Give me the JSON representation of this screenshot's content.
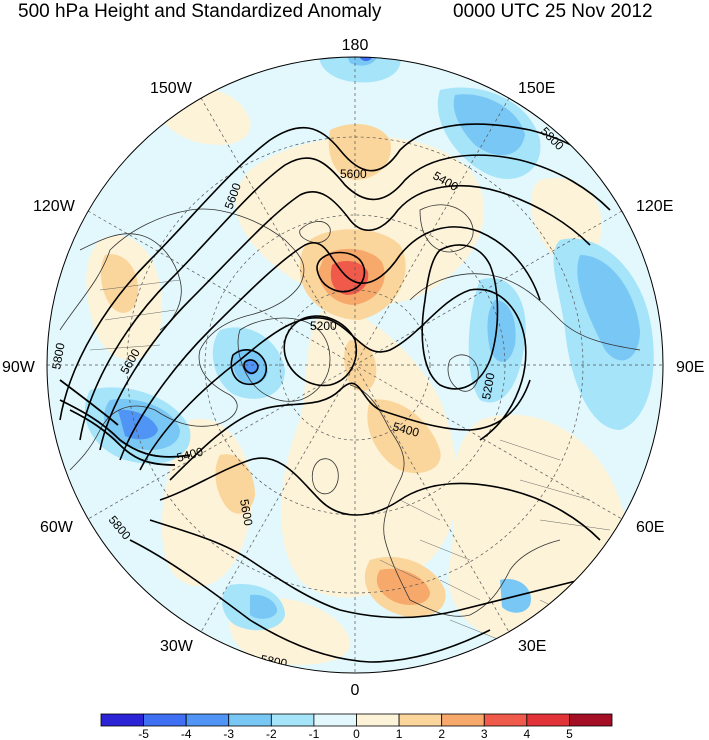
{
  "title_left": "500 hPa Height and Standardized Anomaly",
  "title_right": "0000 UTC 25 Nov 2012",
  "longitude_labels": {
    "top": "180",
    "bottom": "0",
    "left": "90W",
    "right": "90E",
    "upper_left_inner": "150W",
    "upper_right_inner": "150E",
    "upper_left_outer": "120W",
    "upper_right_outer": "120E",
    "lower_left_outer": "60W",
    "lower_right_outer": "60E",
    "lower_left_inner": "30W",
    "lower_right_inner": "30E"
  },
  "contour_labels": [
    "5600",
    "5800",
    "5400",
    "5600",
    "5800",
    "5200",
    "5600",
    "5200",
    "5400",
    "5400",
    "5800",
    "5600",
    "5800"
  ],
  "colorbar": {
    "bins": [
      {
        "color": "#2b24d6"
      },
      {
        "color": "#3f6ff2"
      },
      {
        "color": "#5094f5"
      },
      {
        "color": "#79c7f5"
      },
      {
        "color": "#a6e4fa"
      },
      {
        "color": "#e2f8fc"
      },
      {
        "color": "#fdf3d8"
      },
      {
        "color": "#fbd69c"
      },
      {
        "color": "#f7a86b"
      },
      {
        "color": "#f05a4a"
      },
      {
        "color": "#e23438"
      },
      {
        "color": "#a50f25"
      }
    ],
    "tick_labels": [
      "-5",
      "-4",
      "-3",
      "-2",
      "-1",
      "0",
      "1",
      "2",
      "3",
      "4",
      "5"
    ]
  }
}
